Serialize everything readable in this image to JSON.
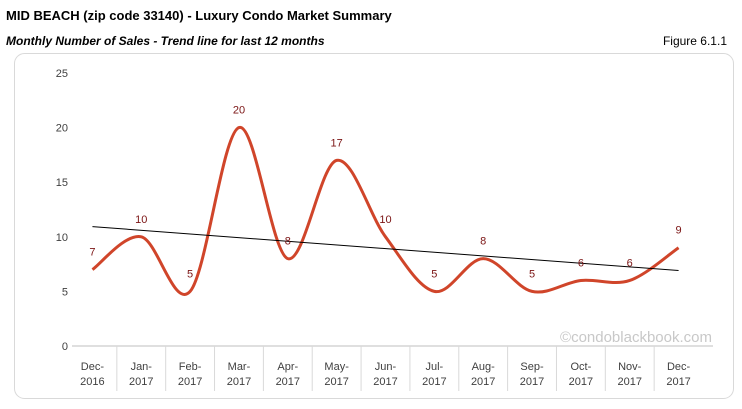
{
  "chart_data": {
    "type": "line",
    "title": "MID BEACH (zip code 33140) - Luxury Condo Market Summary",
    "subtitle": "Monthly Number of Sales - Trend line for last 12 months",
    "figure_label": "Figure 6.1.1",
    "watermark": "©condoblackbook.com",
    "categories": [
      "Dec-2016",
      "Jan-2017",
      "Feb-2017",
      "Mar-2017",
      "Apr-2017",
      "May-2017",
      "Jun-2017",
      "Jul-2017",
      "Aug-2017",
      "Sep-2017",
      "Oct-2017",
      "Nov-2017",
      "Dec-2017"
    ],
    "series": [
      {
        "color": "#d0452a",
        "values": [
          7,
          10,
          5,
          20,
          8,
          17,
          10,
          5,
          8,
          5,
          6,
          6,
          9
        ]
      }
    ],
    "trend_line": {
      "color": "#000000",
      "start": 10.93,
      "end": 6.91
    },
    "ylim": [
      0,
      25
    ],
    "yticks": [
      0,
      5,
      10,
      15,
      20,
      25
    ]
  }
}
